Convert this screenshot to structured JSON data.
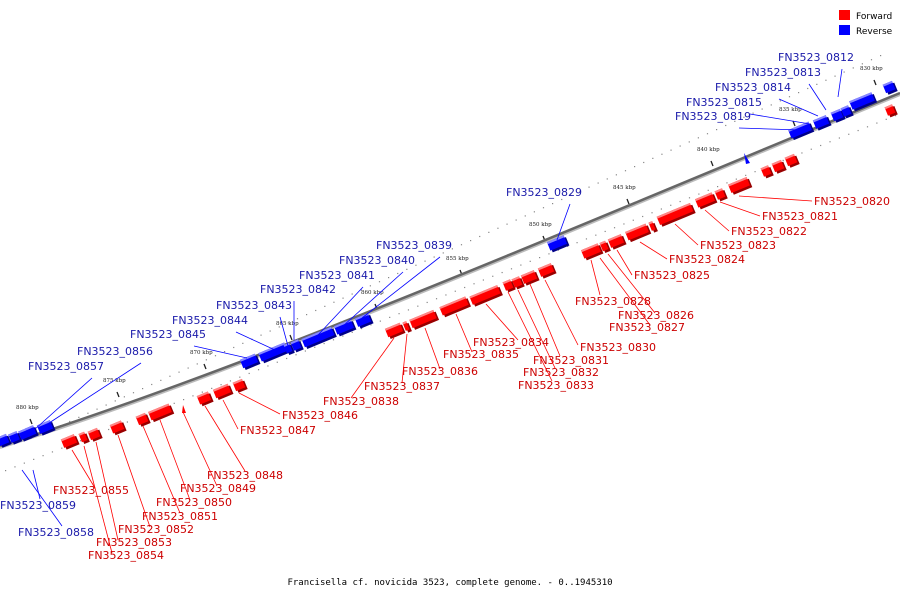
{
  "caption": "Francisella cf. novicida 3523, complete genome. - 0..1945310",
  "legend": [
    {
      "label": "Forward",
      "color": "#ff0000"
    },
    {
      "label": "Reverse",
      "color": "#0000ff"
    }
  ],
  "colors": {
    "forward": "#ff0000",
    "reverse": "#0000ff",
    "forward_label": "#cc0000",
    "reverse_label": "#1a1aaa",
    "backbone": "#666666"
  },
  "kbp_ticks": [
    "830 kbp",
    "835 kbp",
    "840 kbp",
    "845 kbp",
    "850 kbp",
    "855 kbp",
    "860 kbp",
    "865 kbp",
    "870 kbp",
    "875 kbp",
    "880 kbp"
  ],
  "reverse_genes": [
    "FN3523_0812",
    "FN3523_0813",
    "FN3523_0814",
    "FN3523_0815",
    "FN3523_0819",
    "FN3523_0829",
    "FN3523_0839",
    "FN3523_0840",
    "FN3523_0841",
    "FN3523_0842",
    "FN3523_0843",
    "FN3523_0844",
    "FN3523_0845",
    "FN3523_0856",
    "FN3523_0857",
    "FN3523_0859",
    "FN3523_0858"
  ],
  "forward_genes": [
    "FN3523_0820",
    "FN3523_0821",
    "FN3523_0822",
    "FN3523_0823",
    "FN3523_0824",
    "FN3523_0825",
    "FN3523_0826",
    "FN3523_0827",
    "FN3523_0828",
    "FN3523_0830",
    "FN3523_0831",
    "FN3523_0832",
    "FN3523_0833",
    "FN3523_0834",
    "FN3523_0835",
    "FN3523_0836",
    "FN3523_0837",
    "FN3523_0838",
    "FN3523_0846",
    "FN3523_0847",
    "FN3523_0848",
    "FN3523_0849",
    "FN3523_0850",
    "FN3523_0851",
    "FN3523_0852",
    "FN3523_0853",
    "FN3523_0854",
    "FN3523_0855"
  ]
}
